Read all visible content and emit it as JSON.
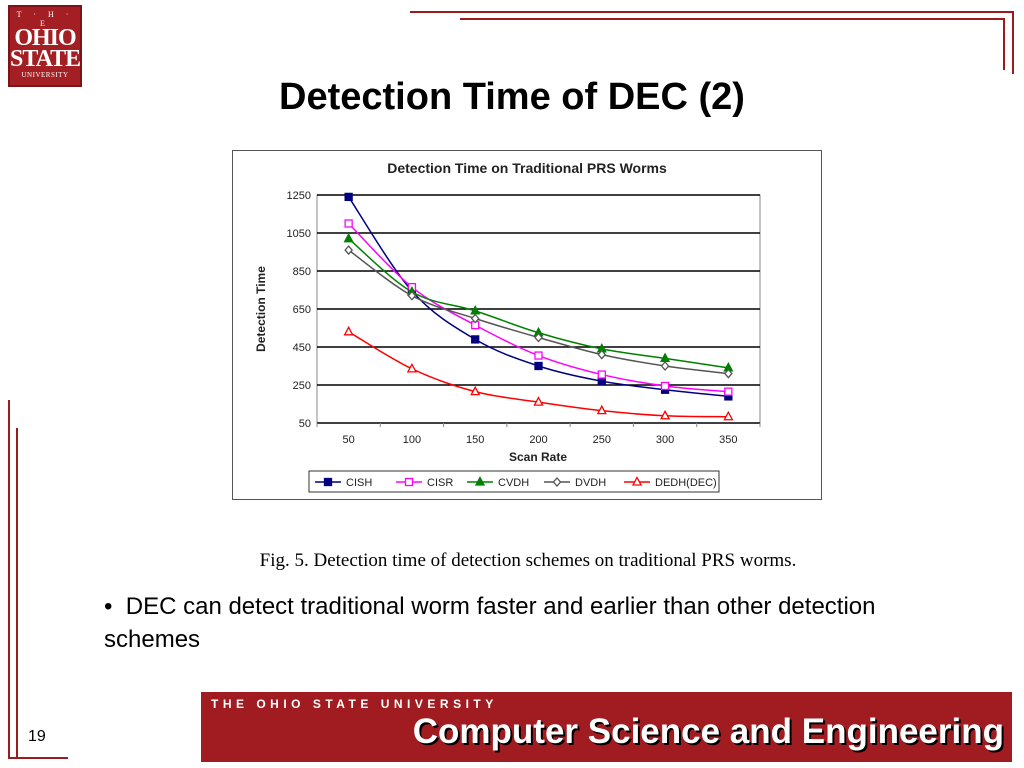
{
  "logo": {
    "line1": "T · H · E",
    "line2a": "OHIO",
    "line2b": "STATE",
    "line3": "UNIVERSITY"
  },
  "slide": {
    "title": "Detection Time of DEC (2)",
    "caption": "Fig. 5. Detection time of detection schemes on traditional PRS worms.",
    "bullet_marker": "•",
    "bullet": "DEC can detect traditional worm faster and earlier than other detection schemes",
    "page_number": "19"
  },
  "footer": {
    "university": "THE OHIO STATE UNIVERSITY",
    "department": "Computer Science and Engineering"
  },
  "colors": {
    "accent": "#a01c20",
    "CISH": "#000080",
    "CISR": "#ff00ff",
    "CVDH": "#008000",
    "DVDH": "#555555",
    "DEDH": "#ff0000"
  },
  "chart_data": {
    "type": "line",
    "title": "Detection Time on Traditional PRS Worms",
    "xlabel": "Scan Rate",
    "ylabel": "Detection Time",
    "categories": [
      "50",
      "100",
      "150",
      "200",
      "250",
      "300",
      "350"
    ],
    "yticks": [
      "1250",
      "1050",
      "850",
      "650",
      "450",
      "250",
      "50"
    ],
    "ylim": [
      50,
      1250
    ],
    "grid": true,
    "legend_position": "bottom",
    "series": [
      {
        "name": "CISH",
        "marker": "filled-square",
        "color": "#000080",
        "values": [
          1240,
          745,
          490,
          350,
          270,
          225,
          190
        ]
      },
      {
        "name": "CISR",
        "marker": "open-square",
        "color": "#ff00ff",
        "values": [
          1100,
          765,
          565,
          405,
          305,
          245,
          215
        ]
      },
      {
        "name": "CVDH",
        "marker": "filled-triangle",
        "color": "#008000",
        "values": [
          1020,
          740,
          640,
          525,
          440,
          390,
          340
        ]
      },
      {
        "name": "DVDH",
        "marker": "open-diamond",
        "color": "#555555",
        "values": [
          960,
          720,
          600,
          500,
          410,
          350,
          310
        ]
      },
      {
        "name": "DEDH(DEC)",
        "marker": "open-triangle",
        "color": "#ff0000",
        "values": [
          530,
          335,
          215,
          160,
          115,
          88,
          83
        ]
      }
    ]
  }
}
